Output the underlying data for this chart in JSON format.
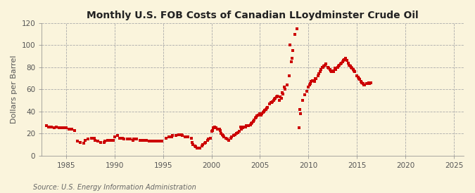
{
  "title": "Monthly U.S. FOB Costs of Canadian LLoydminster Crude Oil",
  "ylabel": "Dollars per Barrel",
  "source": "Source: U.S. Energy Information Administration",
  "background_color": "#FAF4DC",
  "dot_color": "#CC0000",
  "xlim": [
    1982.5,
    2026
  ],
  "ylim": [
    0,
    120
  ],
  "xticks": [
    1985,
    1990,
    1995,
    2000,
    2005,
    2010,
    2015,
    2020,
    2025
  ],
  "yticks": [
    0,
    20,
    40,
    60,
    80,
    100,
    120
  ],
  "data": [
    [
      1983.0,
      27
    ],
    [
      1983.2,
      26
    ],
    [
      1983.5,
      26
    ],
    [
      1983.8,
      25
    ],
    [
      1984.0,
      26
    ],
    [
      1984.3,
      25
    ],
    [
      1984.6,
      25
    ],
    [
      1984.9,
      25
    ],
    [
      1985.0,
      25
    ],
    [
      1985.3,
      24
    ],
    [
      1985.6,
      24
    ],
    [
      1985.9,
      23
    ],
    [
      1986.2,
      13
    ],
    [
      1986.5,
      12
    ],
    [
      1986.8,
      11
    ],
    [
      1987.0,
      14
    ],
    [
      1987.3,
      15
    ],
    [
      1987.6,
      16
    ],
    [
      1987.9,
      16
    ],
    [
      1988.0,
      14
    ],
    [
      1988.3,
      13
    ],
    [
      1988.6,
      12
    ],
    [
      1988.9,
      12
    ],
    [
      1989.0,
      13
    ],
    [
      1989.3,
      14
    ],
    [
      1989.6,
      14
    ],
    [
      1989.9,
      14
    ],
    [
      1990.0,
      17
    ],
    [
      1990.3,
      18
    ],
    [
      1990.5,
      16
    ],
    [
      1990.8,
      16
    ],
    [
      1991.0,
      15
    ],
    [
      1991.3,
      15
    ],
    [
      1991.6,
      15
    ],
    [
      1991.9,
      14
    ],
    [
      1992.0,
      15
    ],
    [
      1992.3,
      15
    ],
    [
      1992.6,
      14
    ],
    [
      1992.9,
      14
    ],
    [
      1993.0,
      14
    ],
    [
      1993.3,
      14
    ],
    [
      1993.6,
      13
    ],
    [
      1993.9,
      13
    ],
    [
      1994.0,
      13
    ],
    [
      1994.3,
      13
    ],
    [
      1994.6,
      13
    ],
    [
      1994.9,
      13
    ],
    [
      1995.3,
      16
    ],
    [
      1995.6,
      17
    ],
    [
      1995.9,
      17
    ],
    [
      1996.0,
      18
    ],
    [
      1996.3,
      18
    ],
    [
      1996.6,
      19
    ],
    [
      1996.9,
      19
    ],
    [
      1997.0,
      18
    ],
    [
      1997.3,
      17
    ],
    [
      1997.6,
      17
    ],
    [
      1997.9,
      16
    ],
    [
      1998.0,
      12
    ],
    [
      1998.3,
      9
    ],
    [
      1998.5,
      7
    ],
    [
      1998.8,
      7
    ],
    [
      1999.0,
      9
    ],
    [
      1999.3,
      11
    ],
    [
      1999.6,
      14
    ],
    [
      1999.9,
      16
    ],
    [
      2000.0,
      22
    ],
    [
      2000.2,
      25
    ],
    [
      2000.5,
      25
    ],
    [
      2000.8,
      24
    ],
    [
      2001.0,
      20
    ],
    [
      2001.2,
      18
    ],
    [
      2001.5,
      16
    ],
    [
      2001.8,
      14
    ],
    [
      2002.0,
      16
    ],
    [
      2002.3,
      18
    ],
    [
      2002.6,
      20
    ],
    [
      2002.9,
      22
    ],
    [
      2003.0,
      26
    ],
    [
      2003.2,
      25
    ],
    [
      2003.5,
      26
    ],
    [
      2003.8,
      27
    ],
    [
      2004.0,
      28
    ],
    [
      2004.2,
      30
    ],
    [
      2004.4,
      32
    ],
    [
      2004.6,
      35
    ],
    [
      2004.8,
      37
    ],
    [
      2005.0,
      38
    ],
    [
      2005.2,
      38
    ],
    [
      2005.4,
      40
    ],
    [
      2005.6,
      42
    ],
    [
      2005.8,
      44
    ],
    [
      2006.0,
      47
    ],
    [
      2006.2,
      48
    ],
    [
      2006.4,
      50
    ],
    [
      2006.6,
      52
    ],
    [
      2006.8,
      54
    ],
    [
      2007.0,
      50
    ],
    [
      2007.2,
      52
    ],
    [
      2007.4,
      56
    ],
    [
      2007.6,
      60
    ],
    [
      2007.8,
      64
    ],
    [
      2008.0,
      72
    ],
    [
      2008.2,
      85
    ],
    [
      2008.4,
      95
    ],
    [
      2008.6,
      110
    ],
    [
      2008.8,
      115
    ],
    [
      2009.0,
      25
    ],
    [
      2009.2,
      38
    ],
    [
      2009.4,
      50
    ],
    [
      2009.6,
      55
    ],
    [
      2009.8,
      58
    ],
    [
      2010.0,
      62
    ],
    [
      2010.2,
      65
    ],
    [
      2010.4,
      68
    ],
    [
      2010.6,
      67
    ],
    [
      2010.8,
      70
    ],
    [
      2011.0,
      72
    ],
    [
      2011.2,
      76
    ],
    [
      2011.4,
      80
    ],
    [
      2011.6,
      81
    ],
    [
      2011.8,
      83
    ],
    [
      2012.0,
      80
    ],
    [
      2012.2,
      78
    ],
    [
      2012.4,
      76
    ],
    [
      2012.6,
      76
    ],
    [
      2012.8,
      78
    ],
    [
      2013.0,
      80
    ],
    [
      2013.2,
      82
    ],
    [
      2013.4,
      84
    ],
    [
      2013.6,
      86
    ],
    [
      2013.8,
      88
    ],
    [
      2014.0,
      86
    ],
    [
      2014.2,
      82
    ],
    [
      2014.4,
      80
    ],
    [
      2014.6,
      78
    ],
    [
      2014.8,
      76
    ],
    [
      2015.0,
      72
    ],
    [
      2015.2,
      70
    ],
    [
      2015.4,
      67
    ],
    [
      2015.6,
      65
    ],
    [
      2015.8,
      64
    ],
    [
      2016.0,
      65
    ],
    [
      2016.2,
      66
    ],
    [
      2016.4,
      66
    ],
    [
      2008.1,
      100
    ],
    [
      2008.3,
      88
    ],
    [
      2009.1,
      42
    ],
    [
      2007.1,
      53
    ],
    [
      2007.3,
      57
    ],
    [
      2007.5,
      62
    ],
    [
      2006.1,
      48
    ],
    [
      2006.3,
      49
    ],
    [
      2006.5,
      51
    ],
    [
      2006.7,
      53
    ],
    [
      2005.1,
      37
    ],
    [
      2005.3,
      39
    ],
    [
      2005.5,
      41
    ],
    [
      2005.7,
      43
    ],
    [
      2004.1,
      29
    ],
    [
      2004.3,
      31
    ],
    [
      2004.5,
      34
    ],
    [
      2004.7,
      36
    ],
    [
      2003.1,
      24
    ],
    [
      2003.3,
      26
    ],
    [
      2003.6,
      27
    ],
    [
      2002.1,
      17
    ],
    [
      2002.4,
      19
    ],
    [
      2002.7,
      21
    ],
    [
      2001.1,
      19
    ],
    [
      2001.3,
      17
    ],
    [
      2001.6,
      15
    ],
    [
      2000.1,
      23
    ],
    [
      2000.3,
      26
    ],
    [
      2000.6,
      24
    ],
    [
      2000.9,
      23
    ],
    [
      1999.1,
      10
    ],
    [
      1999.4,
      12
    ],
    [
      1999.7,
      15
    ],
    [
      1998.1,
      10
    ],
    [
      1998.4,
      8
    ],
    [
      1998.7,
      7
    ],
    [
      2010.1,
      64
    ],
    [
      2010.3,
      67
    ],
    [
      2010.5,
      68
    ],
    [
      2010.7,
      70
    ],
    [
      2011.1,
      74
    ],
    [
      2011.3,
      78
    ],
    [
      2011.5,
      80
    ],
    [
      2011.7,
      82
    ],
    [
      2012.1,
      79
    ],
    [
      2012.3,
      77
    ],
    [
      2012.5,
      77
    ],
    [
      2012.7,
      79
    ],
    [
      2013.1,
      81
    ],
    [
      2013.3,
      83
    ],
    [
      2013.5,
      85
    ],
    [
      2013.7,
      87
    ],
    [
      2014.1,
      84
    ],
    [
      2014.3,
      81
    ],
    [
      2014.5,
      79
    ],
    [
      2014.7,
      77
    ],
    [
      2015.1,
      71
    ],
    [
      2015.3,
      69
    ],
    [
      2015.5,
      66
    ],
    [
      2015.7,
      64
    ],
    [
      2016.1,
      65
    ],
    [
      2016.3,
      65
    ]
  ]
}
